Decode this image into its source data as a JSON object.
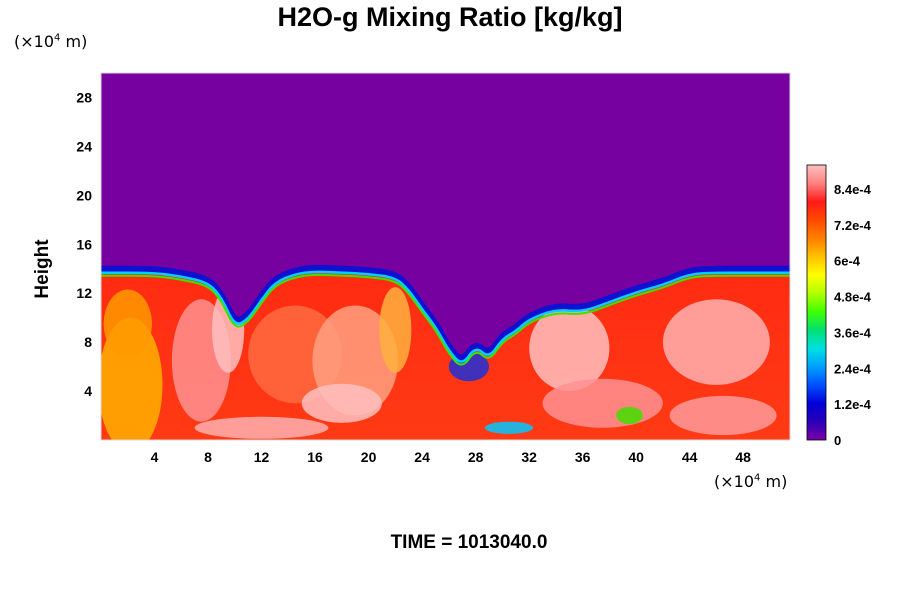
{
  "chart_data": {
    "type": "heatmap",
    "title": "H2O-g Mixing Ratio [kg/kg]",
    "variable": "H2O-g Mixing Ratio",
    "units": "kg/kg",
    "ylabel": "Height",
    "y_unit_prefix": "(×10",
    "y_unit_exp": "4",
    "y_unit_suffix": " m)",
    "x_unit_prefix": "(×10",
    "x_unit_exp": "4",
    "x_unit_suffix": " m)",
    "xlim": [
      0,
      51.5
    ],
    "ylim": [
      0,
      30
    ],
    "x_ticks": [
      4,
      8,
      12,
      16,
      20,
      24,
      28,
      32,
      36,
      40,
      44,
      48
    ],
    "y_ticks": [
      4,
      8,
      12,
      16,
      20,
      24,
      28
    ],
    "colorbar": {
      "min": 0,
      "max": 0.00092,
      "tick_values": [
        0,
        0.00012,
        0.00024,
        0.00036,
        0.00048,
        0.0006,
        0.00072,
        0.00084
      ],
      "tick_labels": [
        "0",
        "1.2e-4",
        "2.4e-4",
        "3.6e-4",
        "4.8e-4",
        "6e-4",
        "7.2e-4",
        "8.4e-4"
      ]
    },
    "moist_layer_top": 14,
    "dry_value": 0,
    "moist_value": 0.00075,
    "time_label": "TIME = 1013040.0"
  },
  "colors": {
    "dry": "#7700a0",
    "colormap": [
      "#7a00a8",
      "#2a00b8",
      "#0000d8",
      "#0050ff",
      "#00a0ff",
      "#00e0e0",
      "#00e070",
      "#40ff00",
      "#b0ff00",
      "#ffff00",
      "#ffc000",
      "#ff8000",
      "#ff4a00",
      "#ff1a1a",
      "#ff8080",
      "#ffc0c0"
    ]
  }
}
